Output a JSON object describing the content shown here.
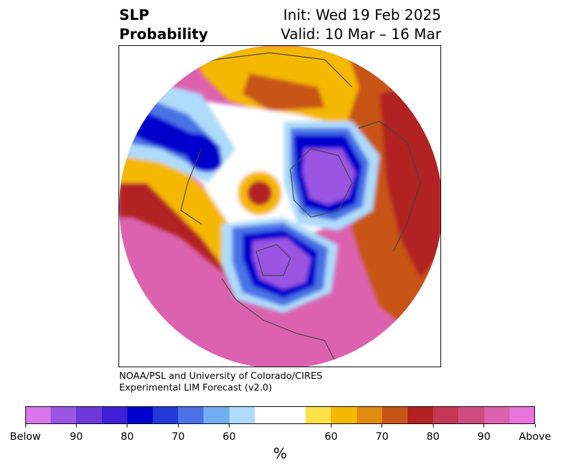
{
  "header": {
    "title_line1": "SLP",
    "title_line2": "Probability",
    "init": "Init: Wed 19 Feb 2025",
    "valid": "Valid: 10 Mar – 16 Mar"
  },
  "credit": {
    "line1": "NOAA/PSL and University of Colorado/CIRES",
    "line2": "Experimental LIM Forecast (v2.0)"
  },
  "colorbar": {
    "colors": [
      "#d977ea",
      "#9b55e3",
      "#6d38d9",
      "#3e1fd6",
      "#0000cd",
      "#2238d8",
      "#4a72e6",
      "#72aef0",
      "#aedcfa",
      "#ffffff",
      "#ffffff",
      "#ffe14a",
      "#f5b800",
      "#e08a10",
      "#c85518",
      "#b22222",
      "#c43855",
      "#ce4d80",
      "#dc62b0",
      "#e874dc"
    ],
    "tick_labels": [
      "Below",
      "90",
      "80",
      "70",
      "60",
      "60",
      "70",
      "80",
      "90",
      "Above"
    ],
    "unit": "%"
  },
  "map_palette": {
    "deep_below": "#9b55e3",
    "strong_below": "#0000cd",
    "below": "#4a72e6",
    "slight_below": "#aedcfa",
    "neutral": "#ffffff",
    "slight_above": "#f5b800",
    "above": "#c85518",
    "strong_above": "#b22222",
    "deep_above": "#dc62b0",
    "land_outline": "#444444"
  }
}
